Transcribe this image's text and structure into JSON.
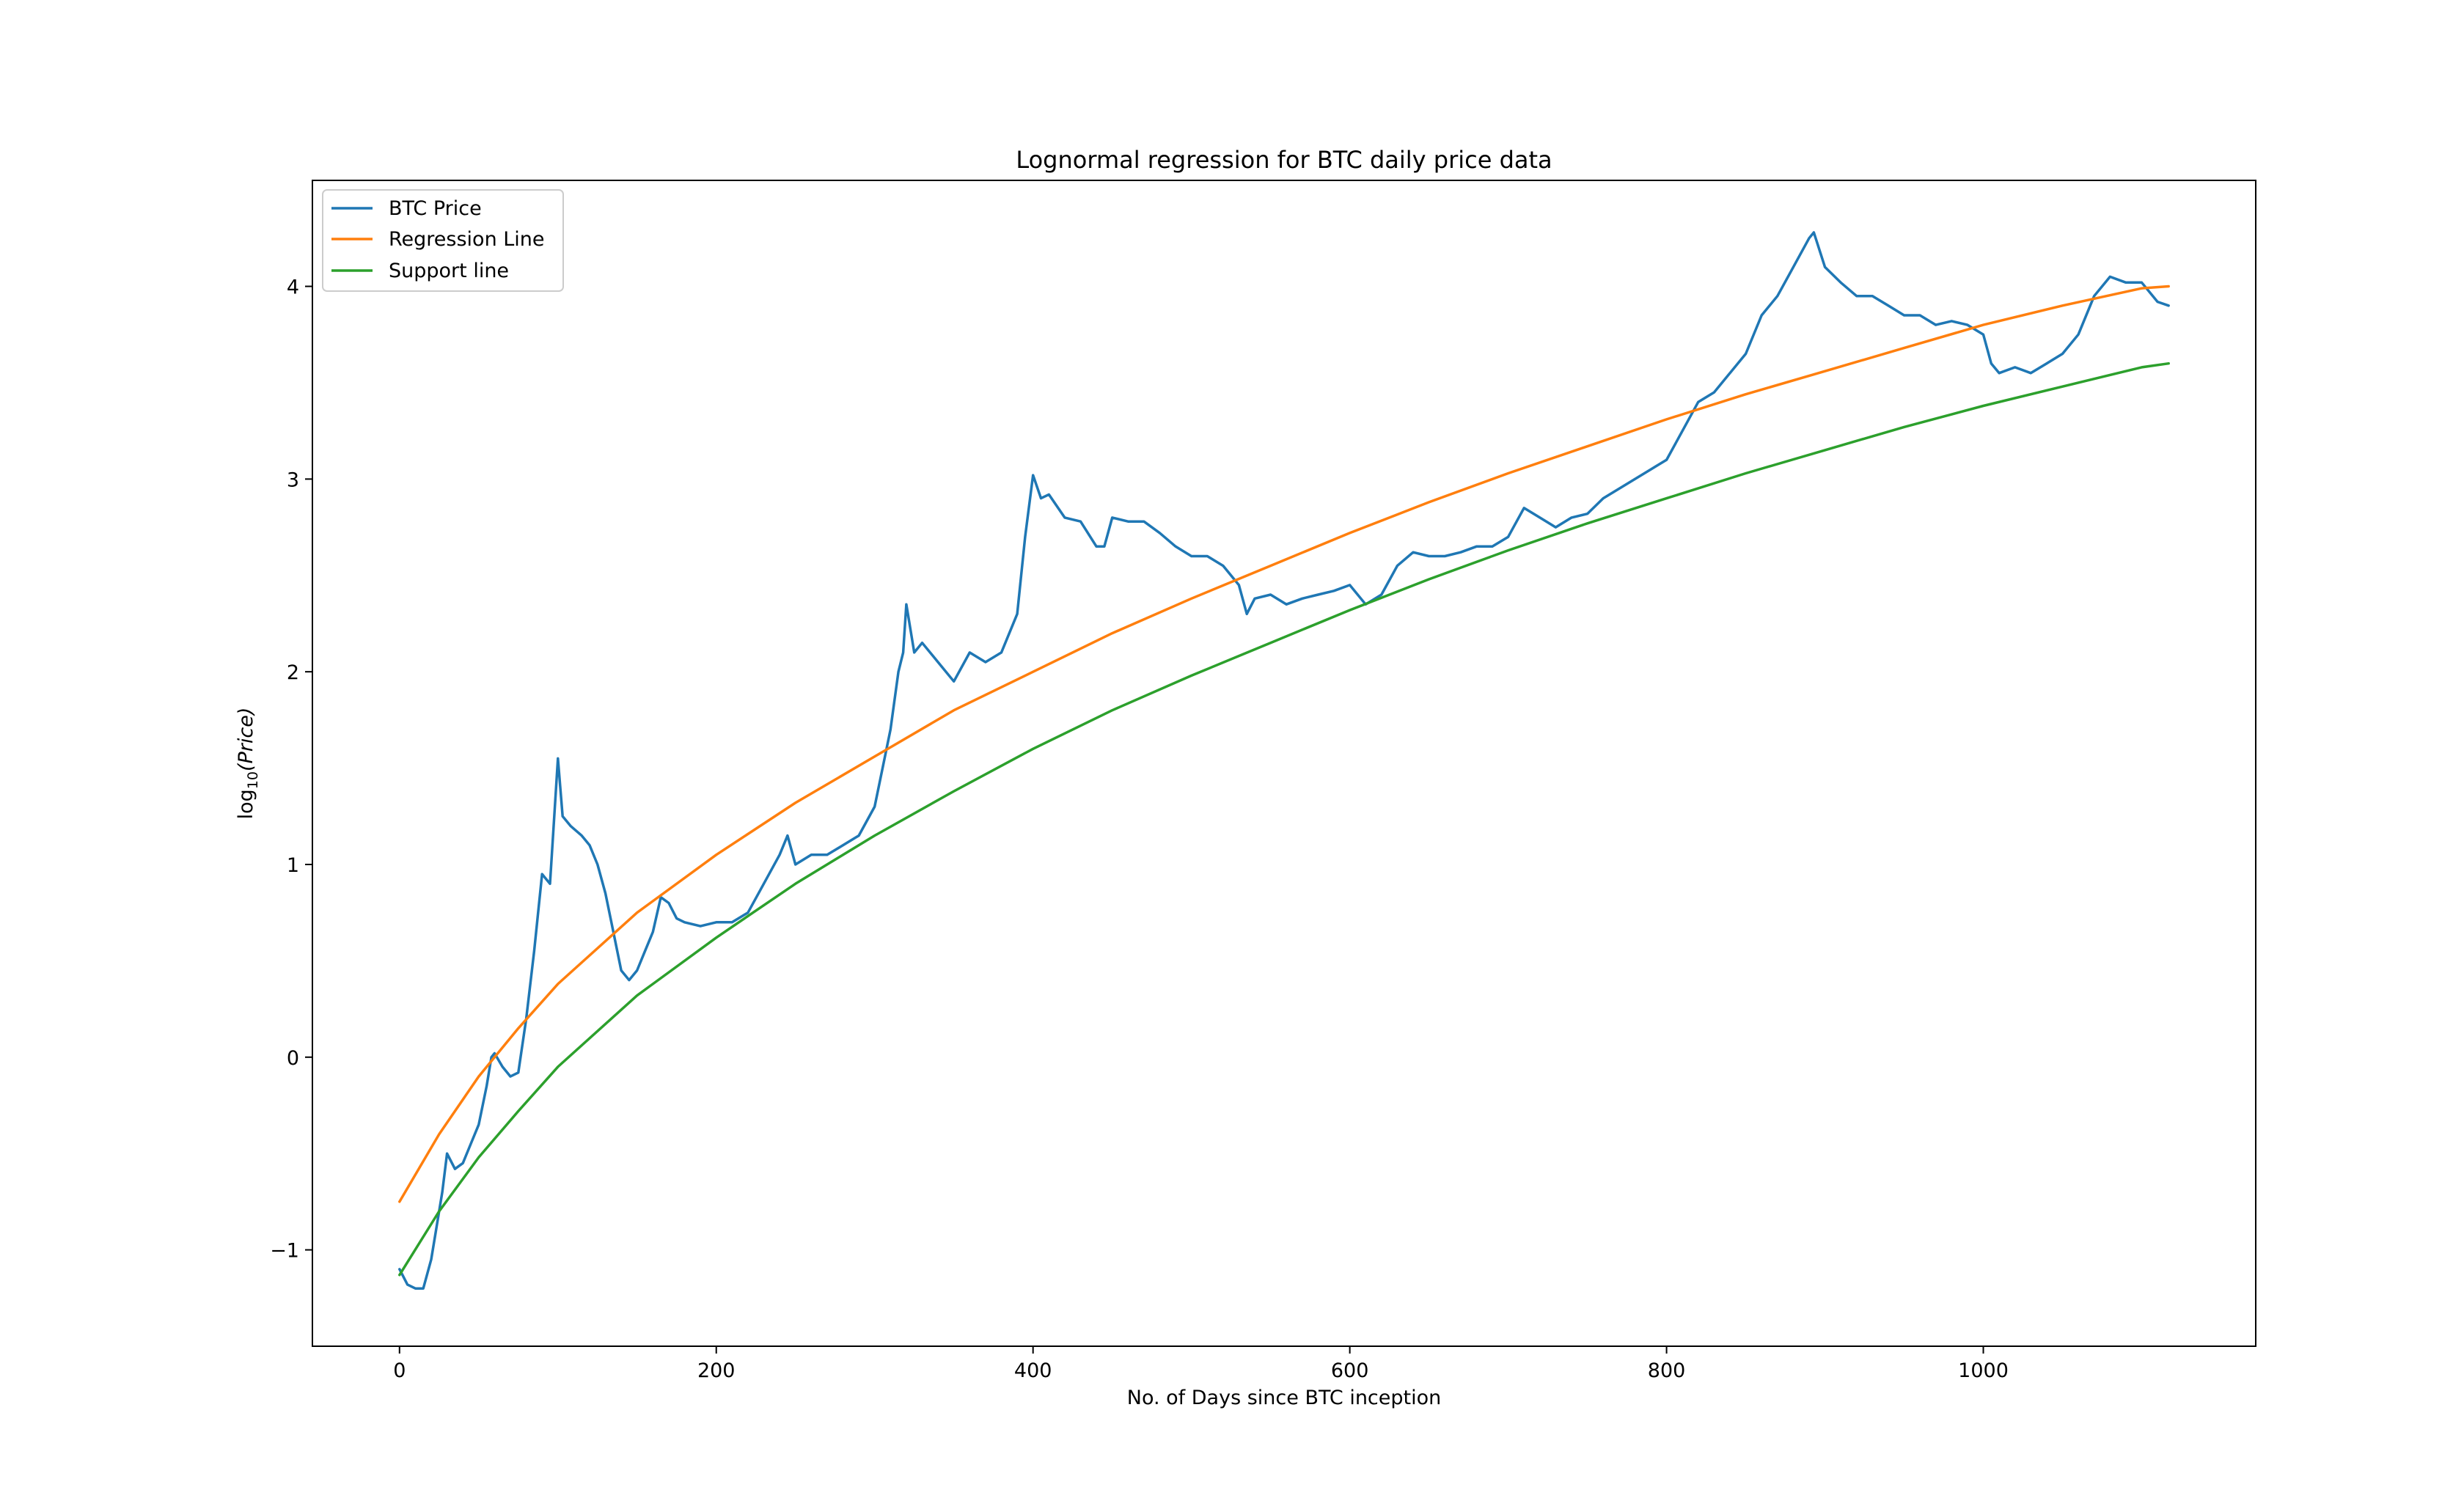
{
  "chart_data": {
    "type": "line",
    "title": "Lognormal regression for BTC daily price data",
    "xlabel": "No. of Days since BTC inception",
    "ylabel": "log10(Price)",
    "ylabel_main": "log",
    "ylabel_sub": "10",
    "ylabel_var": "(Price)",
    "xlim": [
      -55,
      1172
    ],
    "ylim": [
      -1.5,
      4.55
    ],
    "xticks": [
      0,
      200,
      400,
      600,
      800,
      1000
    ],
    "yticks": [
      -1,
      0,
      1,
      2,
      3,
      4
    ],
    "ytick_labels": [
      "−1",
      "0",
      "1",
      "2",
      "3",
      "4"
    ],
    "grid": false,
    "legend_position": "top-left",
    "series": [
      {
        "name": "BTC Price",
        "color": "#1f77b4",
        "x": [
          0,
          5,
          10,
          15,
          20,
          23,
          27,
          30,
          35,
          40,
          45,
          50,
          55,
          58,
          60,
          65,
          70,
          75,
          80,
          85,
          90,
          95,
          100,
          103,
          108,
          115,
          120,
          125,
          130,
          135,
          140,
          145,
          150,
          155,
          160,
          165,
          170,
          175,
          180,
          190,
          200,
          210,
          220,
          230,
          240,
          245,
          250,
          260,
          270,
          280,
          290,
          300,
          305,
          310,
          315,
          318,
          320,
          325,
          330,
          340,
          350,
          360,
          370,
          380,
          390,
          395,
          400,
          405,
          410,
          420,
          430,
          440,
          445,
          450,
          460,
          470,
          480,
          490,
          500,
          510,
          520,
          530,
          535,
          540,
          550,
          560,
          570,
          580,
          590,
          600,
          610,
          620,
          630,
          640,
          650,
          660,
          670,
          680,
          690,
          700,
          710,
          720,
          730,
          740,
          750,
          760,
          770,
          780,
          790,
          800,
          810,
          820,
          830,
          840,
          850,
          860,
          870,
          880,
          890,
          893,
          900,
          910,
          920,
          930,
          940,
          950,
          960,
          970,
          980,
          990,
          1000,
          1005,
          1010,
          1020,
          1030,
          1040,
          1050,
          1060,
          1070,
          1080,
          1090,
          1100,
          1110,
          1117
        ],
        "values": [
          -1.1,
          -1.18,
          -1.2,
          -1.2,
          -1.05,
          -0.9,
          -0.7,
          -0.5,
          -0.58,
          -0.55,
          -0.45,
          -0.35,
          -0.15,
          0.0,
          0.02,
          -0.05,
          -0.1,
          -0.08,
          0.2,
          0.55,
          0.95,
          0.9,
          1.55,
          1.25,
          1.2,
          1.15,
          1.1,
          1.0,
          0.85,
          0.65,
          0.45,
          0.4,
          0.45,
          0.55,
          0.65,
          0.83,
          0.8,
          0.72,
          0.7,
          0.68,
          0.7,
          0.7,
          0.75,
          0.9,
          1.05,
          1.15,
          1.0,
          1.05,
          1.05,
          1.1,
          1.15,
          1.3,
          1.5,
          1.7,
          2.0,
          2.1,
          2.35,
          2.1,
          2.15,
          2.05,
          1.95,
          2.1,
          2.05,
          2.1,
          2.3,
          2.7,
          3.02,
          2.9,
          2.92,
          2.8,
          2.78,
          2.65,
          2.65,
          2.8,
          2.78,
          2.78,
          2.72,
          2.65,
          2.6,
          2.6,
          2.55,
          2.45,
          2.3,
          2.38,
          2.4,
          2.35,
          2.38,
          2.4,
          2.42,
          2.45,
          2.35,
          2.4,
          2.55,
          2.62,
          2.6,
          2.6,
          2.62,
          2.65,
          2.65,
          2.7,
          2.85,
          2.8,
          2.75,
          2.8,
          2.82,
          2.9,
          2.95,
          3.0,
          3.05,
          3.1,
          3.25,
          3.4,
          3.45,
          3.55,
          3.65,
          3.85,
          3.95,
          4.1,
          4.25,
          4.28,
          4.1,
          4.02,
          3.95,
          3.95,
          3.9,
          3.85,
          3.85,
          3.8,
          3.82,
          3.8,
          3.75,
          3.6,
          3.55,
          3.58,
          3.55,
          3.6,
          3.65,
          3.75,
          3.95,
          4.05,
          4.02,
          4.02,
          3.92,
          3.9
        ]
      },
      {
        "name": "Regression Line",
        "color": "#ff7f0e",
        "x": [
          0,
          25,
          50,
          75,
          100,
          150,
          200,
          250,
          300,
          350,
          400,
          450,
          500,
          550,
          600,
          650,
          700,
          750,
          800,
          850,
          900,
          950,
          1000,
          1050,
          1100,
          1117
        ],
        "values": [
          -0.75,
          -0.4,
          -0.1,
          0.15,
          0.38,
          0.75,
          1.05,
          1.32,
          1.56,
          1.8,
          2.0,
          2.2,
          2.38,
          2.55,
          2.72,
          2.88,
          3.03,
          3.17,
          3.31,
          3.44,
          3.56,
          3.68,
          3.8,
          3.9,
          3.99,
          4.0
        ]
      },
      {
        "name": "Support line",
        "color": "#2ca02c",
        "x": [
          0,
          25,
          50,
          75,
          100,
          150,
          200,
          250,
          300,
          350,
          400,
          450,
          500,
          550,
          600,
          650,
          700,
          750,
          800,
          850,
          900,
          950,
          1000,
          1050,
          1100,
          1117
        ],
        "values": [
          -1.13,
          -0.8,
          -0.52,
          -0.28,
          -0.05,
          0.32,
          0.62,
          0.9,
          1.15,
          1.38,
          1.6,
          1.8,
          1.98,
          2.15,
          2.32,
          2.48,
          2.63,
          2.77,
          2.9,
          3.03,
          3.15,
          3.27,
          3.38,
          3.48,
          3.58,
          3.6
        ]
      }
    ]
  }
}
